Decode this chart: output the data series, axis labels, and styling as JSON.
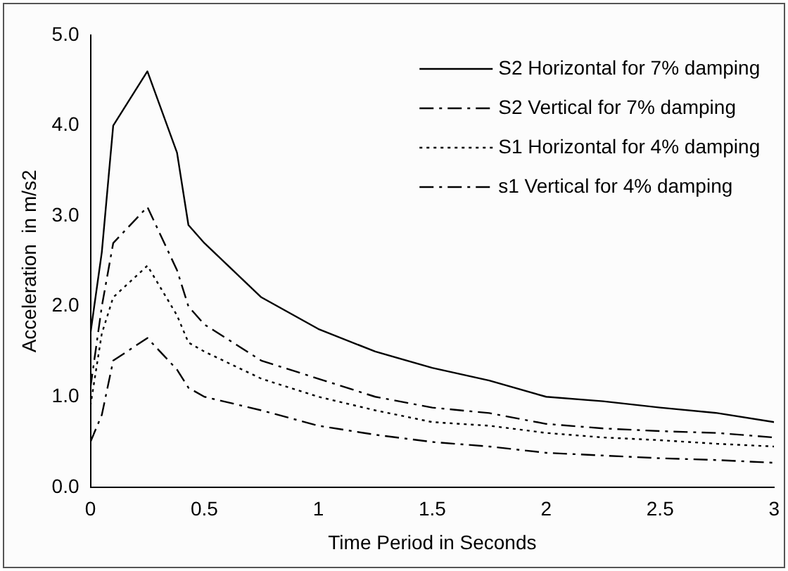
{
  "chart_data": {
    "type": "line",
    "xlabel": "Time Period in Seconds",
    "ylabel": "Acceleration  in m/s2",
    "x": [
      0,
      0.05,
      0.1,
      0.25,
      0.38,
      0.43,
      0.5,
      0.75,
      1,
      1.25,
      1.5,
      1.75,
      2,
      2.25,
      2.5,
      2.75,
      3
    ],
    "xlim": [
      0,
      3
    ],
    "xticks": [
      {
        "value": 0,
        "label": "0"
      },
      {
        "value": 0.5,
        "label": "0.5"
      },
      {
        "value": 1,
        "label": "1"
      },
      {
        "value": 1.5,
        "label": "1.5"
      },
      {
        "value": 2,
        "label": "2"
      },
      {
        "value": 2.5,
        "label": "2.5"
      },
      {
        "value": 3,
        "label": "3"
      }
    ],
    "ylim": [
      0,
      5
    ],
    "yticks": [
      {
        "value": 0,
        "label": "0.0"
      },
      {
        "value": 1,
        "label": "1.0"
      },
      {
        "value": 2,
        "label": "2.0"
      },
      {
        "value": 3,
        "label": "3.0"
      },
      {
        "value": 4,
        "label": "4.0"
      },
      {
        "value": 5,
        "label": "5.0"
      }
    ],
    "grid": false,
    "legend": "top right",
    "marker": "none",
    "series": [
      {
        "name": "S2 Horizontal for 7% damping",
        "color": "#000000",
        "line_style": "solid",
        "values": [
          1.7,
          2.6,
          4.0,
          4.6,
          3.7,
          2.9,
          2.7,
          2.1,
          1.75,
          1.5,
          1.32,
          1.18,
          1.0,
          0.95,
          0.88,
          0.82,
          0.72
        ]
      },
      {
        "name": "S2 Vertical for 7% damping",
        "color": "#000000",
        "line_style": "dashed",
        "values": [
          1.1,
          2.0,
          2.7,
          3.1,
          2.4,
          2.0,
          1.8,
          1.4,
          1.2,
          1.0,
          0.88,
          0.82,
          0.7,
          0.65,
          0.62,
          0.6,
          0.55
        ]
      },
      {
        "name": "S1 Horizontal for 4% damping",
        "color": "#000000",
        "line_style": "dotted",
        "values": [
          0.9,
          1.7,
          2.1,
          2.45,
          1.9,
          1.6,
          1.5,
          1.2,
          1.0,
          0.85,
          0.72,
          0.68,
          0.6,
          0.55,
          0.52,
          0.48,
          0.45
        ]
      },
      {
        "name": "s1 Vertical for 4% damping",
        "color": "#000000",
        "line_style": "dashed",
        "values": [
          0.5,
          0.8,
          1.4,
          1.65,
          1.3,
          1.1,
          1.0,
          0.85,
          0.68,
          0.58,
          0.5,
          0.45,
          0.38,
          0.35,
          0.32,
          0.3,
          0.27
        ]
      }
    ]
  }
}
